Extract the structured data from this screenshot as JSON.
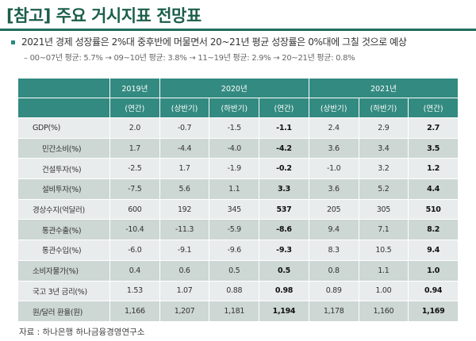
{
  "title": "[참고] 주요 거시지표 전망표",
  "bullet": "2021년 경제 성장률은 2%대 중후반에 머물면서 20~21년 평균 성장률은 0%대에 그칠 것으로 예상",
  "sub": "– 00~07년 평균: 5.7% → 09~10년 평균: 3.8% → 11~19년 평균: 2.9% → 20~21년 평균: 0.8%",
  "table": {
    "years": [
      "2019년",
      "2020년",
      "2021년"
    ],
    "periods": [
      "(연간)",
      "(상반기)",
      "(하반기)",
      "(연간)",
      "(상반기)",
      "(하반기)",
      "(연간)"
    ],
    "rows": [
      {
        "label": "GDP(%)",
        "values": [
          "2.0",
          "-0.7",
          "-1.5",
          "-1.1",
          "2.4",
          "2.9",
          "2.7"
        ]
      },
      {
        "label": "민간소비(%)",
        "values": [
          "1.7",
          "-4.4",
          "-4.0",
          "-4.2",
          "3.6",
          "3.4",
          "3.5"
        ]
      },
      {
        "label": "건설투자(%)",
        "values": [
          "-2.5",
          "1.7",
          "-1.9",
          "-0.2",
          "-1.0",
          "3.2",
          "1.2"
        ]
      },
      {
        "label": "설비투자(%)",
        "values": [
          "-7.5",
          "5.6",
          "1.1",
          "3.3",
          "3.6",
          "5.2",
          "4.4"
        ]
      },
      {
        "label": "경상수지(억달러)",
        "values": [
          "600",
          "192",
          "345",
          "537",
          "205",
          "305",
          "510"
        ]
      },
      {
        "label": "통관수출(%)",
        "values": [
          "-10.4",
          "-11.3",
          "-5.9",
          "-8.6",
          "9.4",
          "7.1",
          "8.2"
        ]
      },
      {
        "label": "통관수입(%)",
        "values": [
          "-6.0",
          "-9.1",
          "-9.6",
          "-9.3",
          "8.3",
          "10.5",
          "9.4"
        ]
      },
      {
        "label": "소비자물가(%)",
        "values": [
          "0.4",
          "0.6",
          "0.5",
          "0.5",
          "0.8",
          "1.1",
          "1.0"
        ]
      },
      {
        "label": "국고 3년 금리(%)",
        "values": [
          "1.53",
          "1.07",
          "0.88",
          "0.98",
          "0.89",
          "1.00",
          "0.94"
        ]
      },
      {
        "label": "원/달러 환율(원)",
        "values": [
          "1,166",
          "1,207",
          "1,181",
          "1,194",
          "1,178",
          "1,160",
          "1,169"
        ]
      }
    ]
  },
  "source": "자료 : 하나은행 하나금융경영연구소"
}
